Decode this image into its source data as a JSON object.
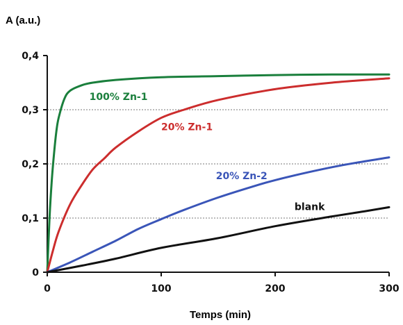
{
  "chart_data": {
    "type": "line",
    "ylabel": "A (a.u.)",
    "xlabel": "Temps (min)",
    "xlim": [
      0,
      300
    ],
    "ylim": [
      0,
      0.4
    ],
    "x_ticks": [
      {
        "value": 0,
        "label": "0"
      },
      {
        "value": 100,
        "label": "100"
      },
      {
        "value": 200,
        "label": "200"
      },
      {
        "value": 300,
        "label": "300"
      }
    ],
    "y_ticks": [
      {
        "value": 0,
        "label": "0"
      },
      {
        "value": 0.1,
        "label": "0,1"
      },
      {
        "value": 0.2,
        "label": "0,2"
      },
      {
        "value": 0.3,
        "label": "0,3"
      },
      {
        "value": 0.4,
        "label": "0,4"
      }
    ],
    "grid": "horizontal dotted at 0.1, 0.2, 0.3",
    "series": [
      {
        "name": "100% Zn-1",
        "color": "#1a7f3c",
        "points": [
          [
            0,
            0
          ],
          [
            2,
            0.1
          ],
          [
            4,
            0.17
          ],
          [
            6,
            0.22
          ],
          [
            8,
            0.26
          ],
          [
            10,
            0.285
          ],
          [
            15,
            0.32
          ],
          [
            20,
            0.335
          ],
          [
            30,
            0.345
          ],
          [
            40,
            0.35
          ],
          [
            60,
            0.355
          ],
          [
            100,
            0.36
          ],
          [
            150,
            0.362
          ],
          [
            200,
            0.364
          ],
          [
            250,
            0.365
          ],
          [
            300,
            0.365
          ]
        ]
      },
      {
        "name": "20% Zn-1",
        "color": "#cc2d2d",
        "points": [
          [
            0,
            0
          ],
          [
            5,
            0.04
          ],
          [
            10,
            0.075
          ],
          [
            20,
            0.125
          ],
          [
            30,
            0.16
          ],
          [
            40,
            0.19
          ],
          [
            50,
            0.21
          ],
          [
            60,
            0.23
          ],
          [
            80,
            0.26
          ],
          [
            100,
            0.285
          ],
          [
            120,
            0.3
          ],
          [
            150,
            0.318
          ],
          [
            200,
            0.338
          ],
          [
            250,
            0.35
          ],
          [
            300,
            0.358
          ]
        ]
      },
      {
        "name": "20% Zn-2",
        "color": "#3a55b8",
        "points": [
          [
            0,
            0
          ],
          [
            20,
            0.018
          ],
          [
            40,
            0.038
          ],
          [
            60,
            0.058
          ],
          [
            80,
            0.08
          ],
          [
            100,
            0.098
          ],
          [
            120,
            0.115
          ],
          [
            150,
            0.138
          ],
          [
            180,
            0.158
          ],
          [
            200,
            0.17
          ],
          [
            230,
            0.185
          ],
          [
            260,
            0.198
          ],
          [
            300,
            0.212
          ]
        ]
      },
      {
        "name": "blank",
        "color": "#111111",
        "points": [
          [
            0,
            0
          ],
          [
            30,
            0.012
          ],
          [
            60,
            0.025
          ],
          [
            100,
            0.045
          ],
          [
            150,
            0.063
          ],
          [
            200,
            0.085
          ],
          [
            250,
            0.103
          ],
          [
            280,
            0.113
          ],
          [
            300,
            0.12
          ]
        ]
      }
    ],
    "annotations": [
      {
        "text": "100% Zn-1",
        "series": 0,
        "x": 37,
        "y": 0.318
      },
      {
        "text": "20% Zn-1",
        "series": 1,
        "x": 100,
        "y": 0.262
      },
      {
        "text": "20% Zn-2",
        "series": 2,
        "x": 148,
        "y": 0.172
      },
      {
        "text": "blank",
        "series": 3,
        "x": 217,
        "y": 0.115
      }
    ]
  }
}
